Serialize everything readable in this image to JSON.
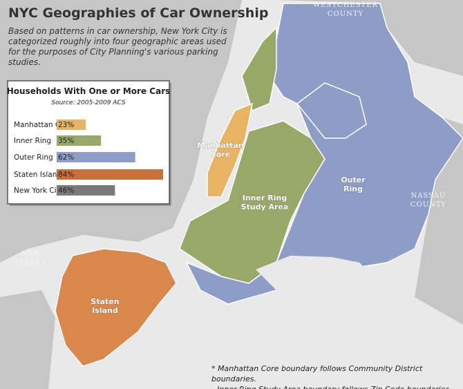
{
  "header": {
    "title": "NYC Geographies of Car Ownership",
    "description": "Based on patterns in car ownership, New York City is categorized roughly into four geographic areas used for the purposes of City Planning's various parking studies."
  },
  "chart_data": {
    "type": "bar",
    "orientation": "horizontal",
    "title": "Households With One or More Cars",
    "subtitle": "Source: 2005-2009 ACS",
    "categories": [
      "Manhattan Core",
      "Inner Ring",
      "Outer Ring",
      "Staten Island",
      "New York City"
    ],
    "values": [
      23,
      35,
      62,
      84,
      46
    ],
    "value_labels": [
      "23%",
      "35%",
      "62%",
      "84%",
      "46%"
    ],
    "colors": [
      "#e8b464",
      "#98a866",
      "#8e9dc8",
      "#c8703a",
      "#7a7a7a"
    ]
  },
  "map": {
    "labels": {
      "manhattan_core": [
        "Manhattan",
        "Core"
      ],
      "inner_ring": [
        "Inner Ring",
        "Study Area"
      ],
      "outer_ring": [
        "Outer",
        "Ring"
      ],
      "staten_island": [
        "Staten",
        "Island"
      ],
      "new_jersey": [
        "NEW",
        "JERSEY"
      ],
      "westchester": [
        "WESTCHESTER",
        "COUNTY"
      ],
      "nassau": [
        "NASSAU",
        "COUNTY"
      ]
    }
  },
  "notes": [
    "* Manhattan Core boundary follows Community District boundaries.",
    "Inner Ring Study Area boundary follows Zip Code boundaries."
  ]
}
